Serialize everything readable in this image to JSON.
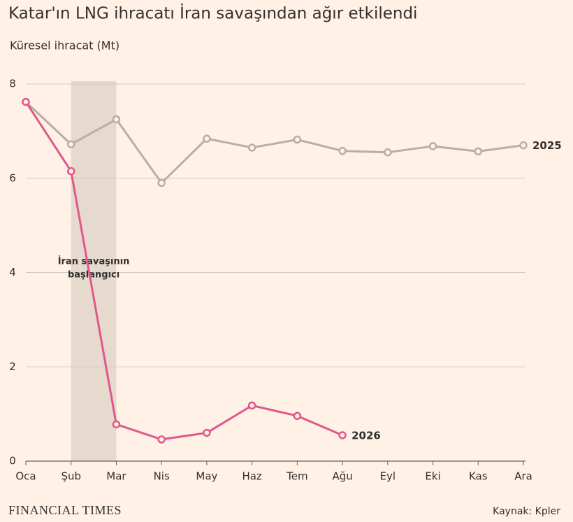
{
  "chart_data": {
    "type": "line",
    "title": "Katar'ın LNG ihracatı İran savaşından ağır etkilendi",
    "subtitle": "Küresel ihracat (Mt)",
    "categories": [
      "Oca",
      "Şub",
      "Mar",
      "Nis",
      "May",
      "Haz",
      "Tem",
      "Ağu",
      "Eyl",
      "Eki",
      "Kas",
      "Ara"
    ],
    "series": [
      {
        "name": "2025",
        "color": "#b9aea6",
        "values": [
          7.62,
          6.72,
          7.25,
          5.9,
          6.84,
          6.65,
          6.82,
          6.58,
          6.55,
          6.68,
          6.57,
          6.7
        ]
      },
      {
        "name": "2026",
        "color": "#e0588b",
        "values": [
          7.62,
          6.15,
          0.78,
          0.46,
          0.6,
          1.18,
          0.96,
          0.55,
          null,
          null,
          null,
          null
        ]
      }
    ],
    "ylim": [
      0,
      8
    ],
    "yticks": [
      0,
      2,
      4,
      6,
      8
    ],
    "grid": true,
    "highlight": {
      "from": "Şub",
      "to": "Mar",
      "color": "#e6d9ce"
    },
    "annotation": [
      "İran savaşının",
      "başlangıcı"
    ],
    "source": "Kaynak: Kpler",
    "logo": "FINANCIAL TIMES"
  }
}
